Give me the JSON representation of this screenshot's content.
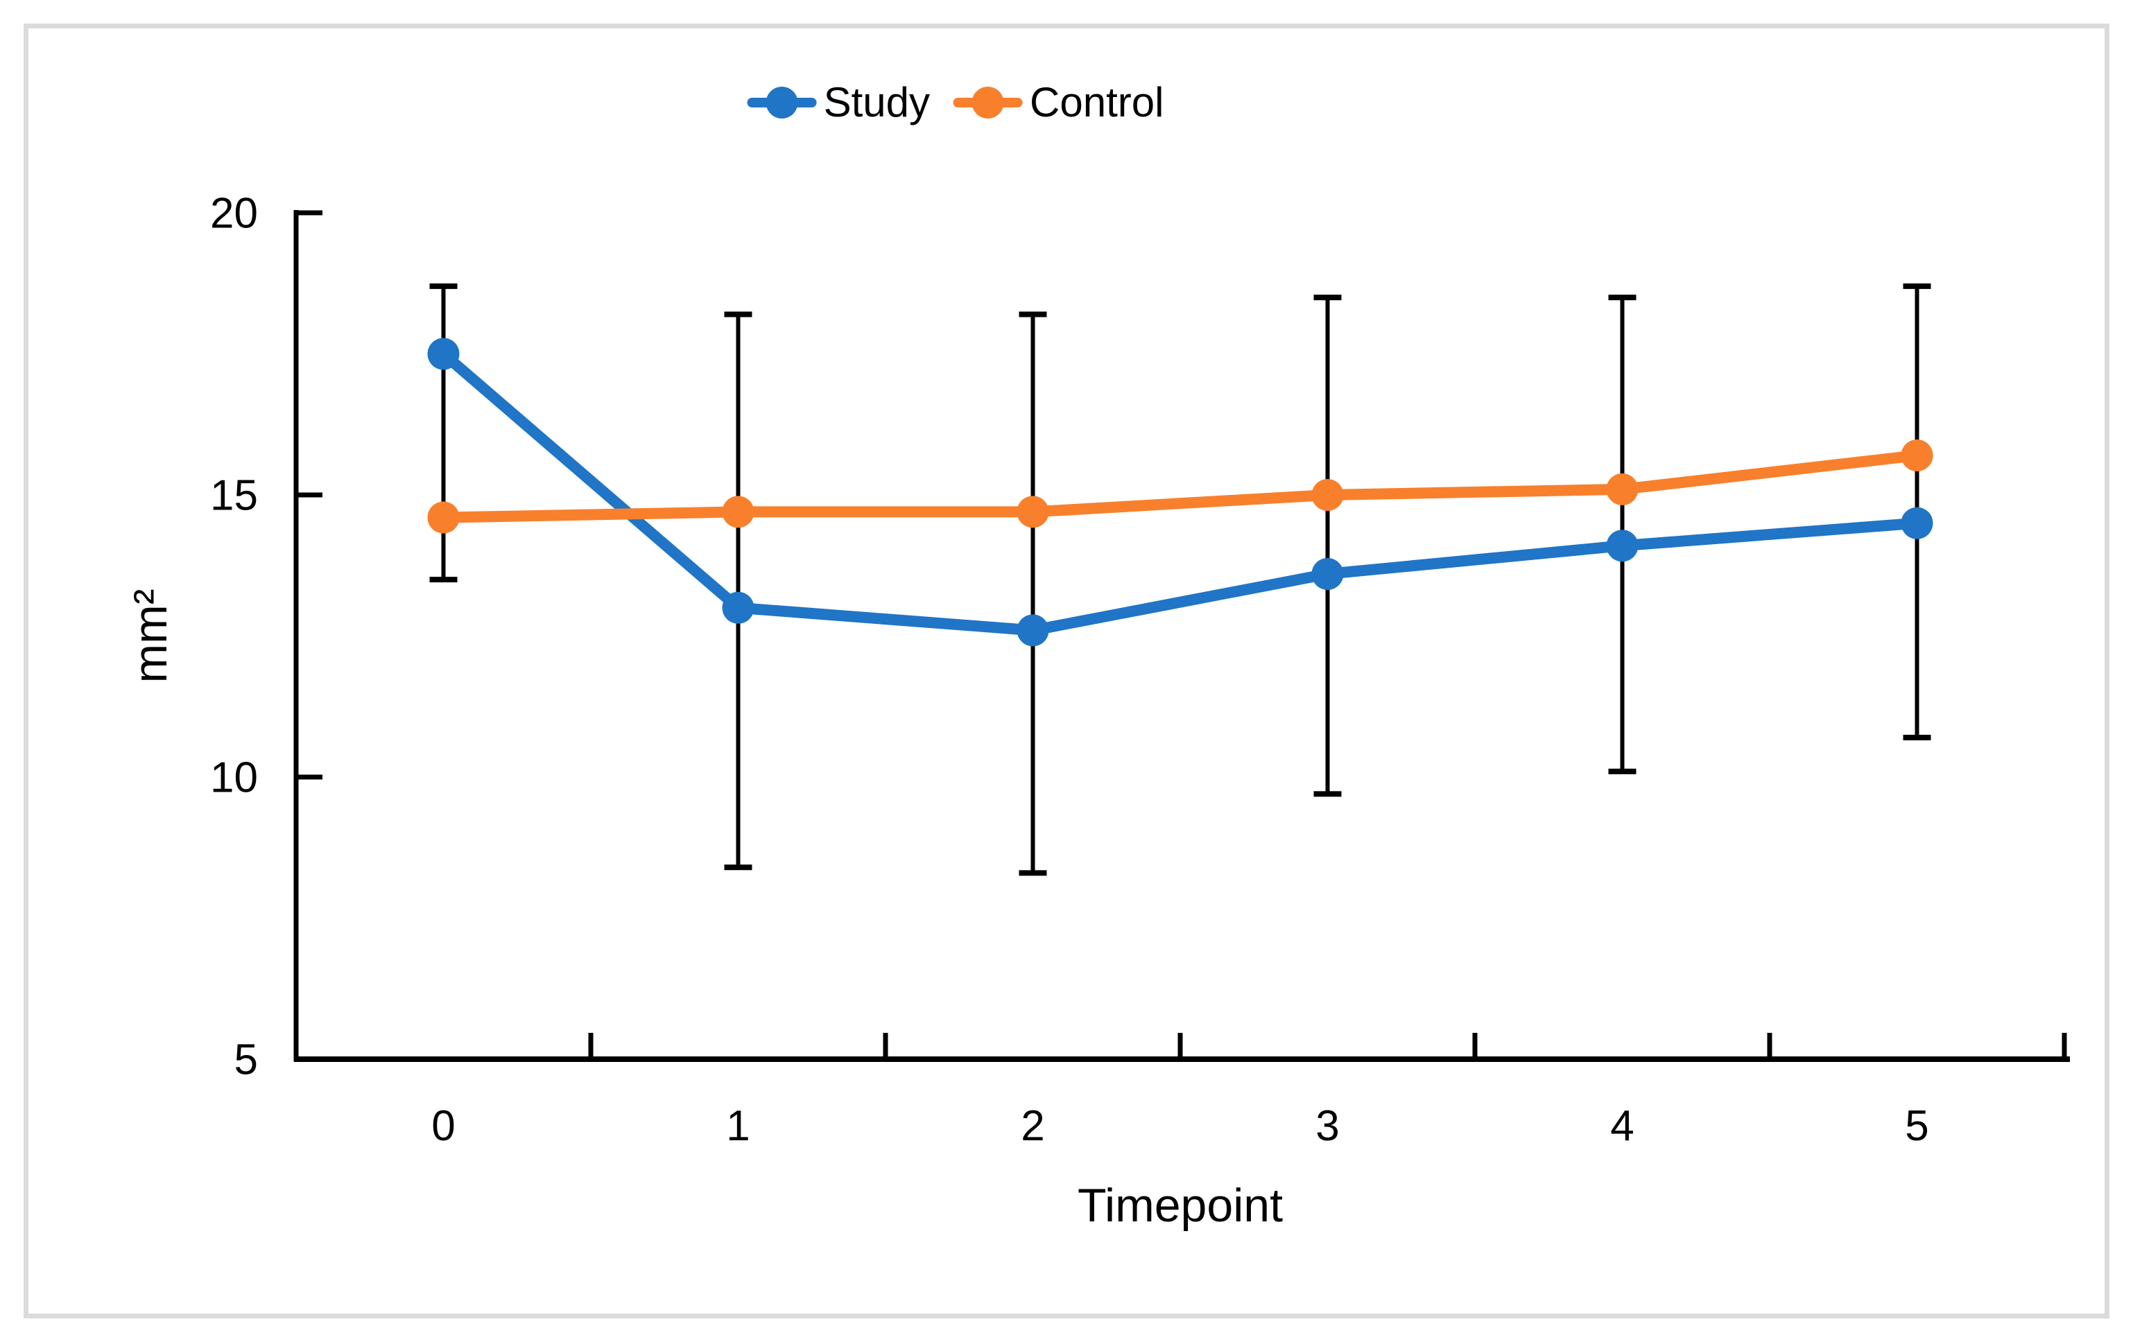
{
  "figure": {
    "background_color": "#ffffff",
    "border_color": "#dbdbdb"
  },
  "chart_data": {
    "type": "line",
    "title": "",
    "x_axis": {
      "label": "Timepoint",
      "categories": [
        "0",
        "1",
        "2",
        "3",
        "4",
        "5"
      ]
    },
    "y_axis": {
      "label": "mm²",
      "ticks": [
        20,
        15,
        10,
        5
      ],
      "range": [
        5,
        20
      ]
    },
    "legend": {
      "position": "top-center"
    },
    "axis_color": "#000000",
    "series": [
      {
        "name": "Study",
        "color": "#2075C6",
        "marker": "circle",
        "values": [
          17.5,
          13.0,
          12.6,
          13.6,
          14.1,
          14.5
        ]
      },
      {
        "name": "Control",
        "color": "#F8802C",
        "marker": "circle",
        "values": [
          14.6,
          14.7,
          14.7,
          15.0,
          15.1,
          15.7
        ]
      }
    ],
    "error_bars": {
      "color": "#000000",
      "top": [
        18.7,
        18.2,
        18.2,
        18.5,
        18.5,
        18.7
      ],
      "bottom": [
        13.5,
        8.4,
        8.3,
        9.7,
        10.1,
        10.7
      ]
    }
  }
}
